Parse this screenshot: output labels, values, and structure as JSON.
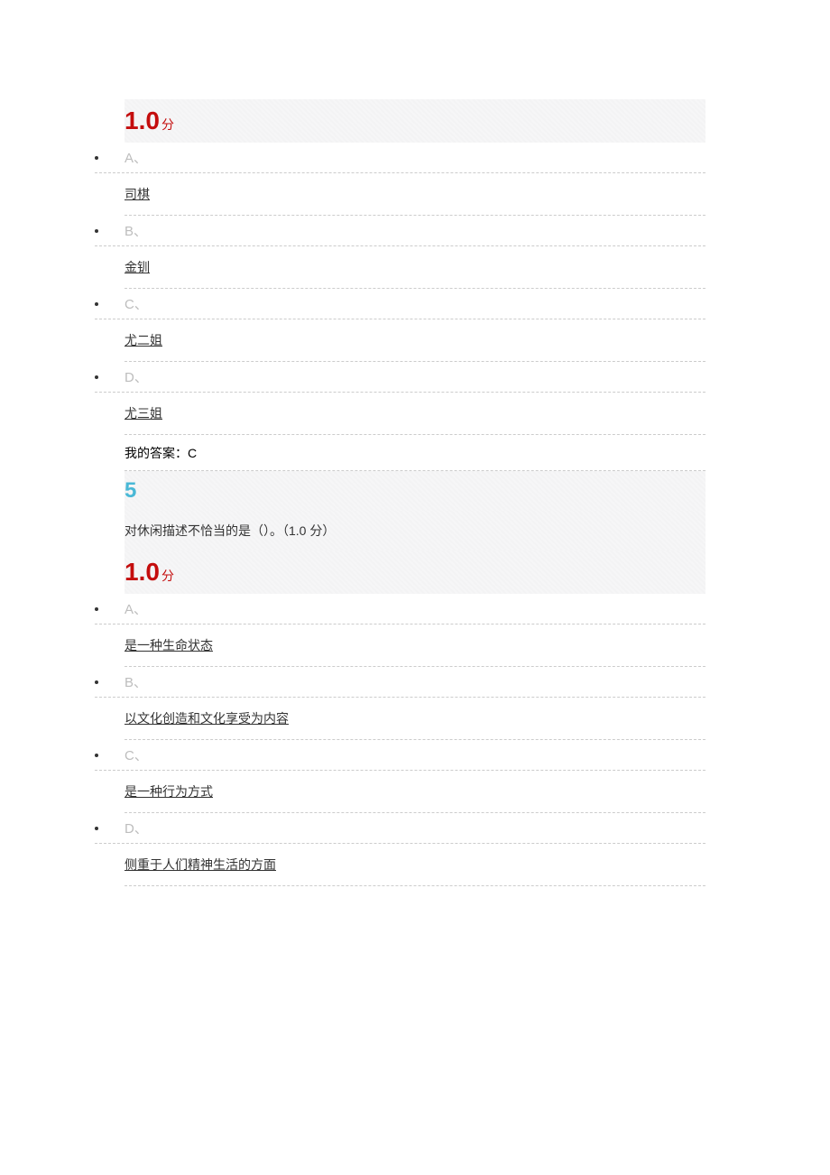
{
  "colors": {
    "score": "#c40d0d",
    "question_number": "#49b8d6",
    "option_letter": "#bdbdbd",
    "text": "#333333",
    "dash_border": "#cccccc",
    "hatch_bg_a": "#f6f6f7",
    "hatch_bg_b": "#f3f3f4"
  },
  "q4": {
    "score_value": "1.0",
    "score_unit": "分",
    "options": [
      {
        "letter": "A、",
        "text": "司棋"
      },
      {
        "letter": "B、",
        "text": "金钏"
      },
      {
        "letter": "C、",
        "text": "尤二姐"
      },
      {
        "letter": "D、",
        "text": "尤三姐"
      }
    ],
    "answer_label": "我的答案：",
    "answer_value": "C"
  },
  "q5": {
    "number": "5",
    "question_text": "对休闲描述不恰当的是（）。（1.0 分）",
    "score_value": "1.0",
    "score_unit": "分",
    "options": [
      {
        "letter": "A、",
        "text": "是一种生命状态"
      },
      {
        "letter": "B、",
        "text": "以文化创造和文化享受为内容"
      },
      {
        "letter": "C、",
        "text": "是一种行为方式"
      },
      {
        "letter": "D、",
        "text": "侧重于人们精神生活的方面"
      }
    ]
  }
}
